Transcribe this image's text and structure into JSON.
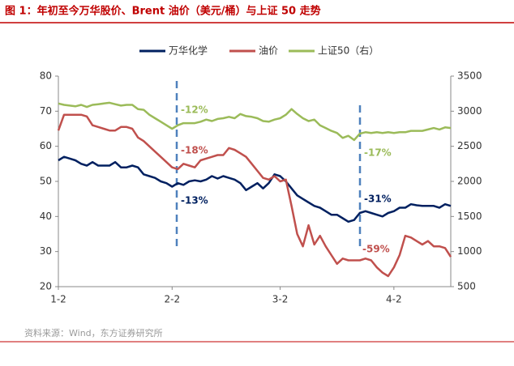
{
  "chart_data": {
    "type": "line",
    "title": "图 1：年初至今万华股价、Brent 油价（美元/桶）与上证 50 走势",
    "source": "资料来源：Wind，东方证券研究所",
    "categories": [
      "1-2",
      null,
      null,
      null,
      null,
      null,
      null,
      null,
      null,
      null,
      null,
      null,
      null,
      null,
      null,
      null,
      null,
      null,
      null,
      null,
      "2-2",
      null,
      null,
      null,
      null,
      null,
      null,
      null,
      null,
      null,
      null,
      null,
      null,
      null,
      null,
      null,
      null,
      null,
      null,
      "3-2",
      null,
      null,
      null,
      null,
      null,
      null,
      null,
      null,
      null,
      null,
      null,
      null,
      null,
      null,
      null,
      null,
      null,
      null,
      null,
      "4-2",
      null,
      null,
      null,
      null,
      null,
      null,
      null,
      null,
      null,
      null
    ],
    "series": [
      {
        "name": "万华化学",
        "color": "#002060",
        "values": [
          56,
          57,
          56.5,
          56,
          55,
          54.5,
          55.5,
          54.5,
          54.5,
          54.5,
          55.5,
          54,
          54,
          54.5,
          54,
          52,
          51.5,
          51,
          50,
          49.5,
          48.5,
          49.5,
          49,
          50,
          50.3,
          50,
          50.5,
          51.5,
          50.8,
          51.5,
          51,
          50.5,
          49.5,
          47.5,
          48.5,
          49.5,
          48,
          49.5,
          52,
          51.5,
          50,
          48,
          46,
          45,
          44,
          43,
          42.5,
          41.5,
          40.5,
          40.5,
          39.5,
          38.5,
          39,
          41,
          41.5,
          41,
          40.5,
          40,
          41,
          41.5,
          42.5,
          42.5,
          43.5,
          43.2,
          43,
          43,
          43,
          42.5,
          43.5,
          43
        ]
      },
      {
        "name": "油价",
        "color": "#c0504d",
        "values": [
          64.5,
          69,
          69,
          69,
          69,
          68.5,
          66,
          65.5,
          65,
          64.5,
          64.5,
          65.5,
          65.5,
          65,
          62.5,
          61.5,
          60,
          58.5,
          57,
          55.5,
          54,
          53.5,
          55,
          54.5,
          54,
          56,
          56.5,
          57,
          57.5,
          57.5,
          59.5,
          59,
          58,
          57,
          55,
          53,
          51,
          50.5,
          51.5,
          50,
          50.5,
          43,
          35,
          31.5,
          37.5,
          32,
          34.5,
          31.5,
          29,
          26.5,
          28,
          27.5,
          27.5,
          27.5,
          28,
          27.5,
          25.5,
          24,
          23,
          25.5,
          29,
          34.5,
          34,
          33,
          32,
          33,
          31.5,
          31.5,
          31,
          28.5
        ]
      },
      {
        "name": "上证50（右）",
        "color": "#9bbb59",
        "axis": "y2",
        "values": [
          3110,
          3090,
          3080,
          3070,
          3090,
          3060,
          3090,
          3100,
          3110,
          3120,
          3100,
          3080,
          3090,
          3090,
          3030,
          3020,
          2950,
          2900,
          2850,
          2800,
          2750,
          2800,
          2830,
          2830,
          2830,
          2850,
          2880,
          2860,
          2890,
          2900,
          2920,
          2900,
          2960,
          2930,
          2920,
          2900,
          2860,
          2850,
          2880,
          2900,
          2950,
          3030,
          2960,
          2900,
          2860,
          2880,
          2800,
          2760,
          2720,
          2690,
          2620,
          2650,
          2590,
          2680,
          2700,
          2690,
          2700,
          2690,
          2700,
          2690,
          2700,
          2700,
          2720,
          2720,
          2720,
          2740,
          2760,
          2740,
          2770,
          2760
        ]
      }
    ],
    "ylim": [
      20,
      80
    ],
    "yticks": [
      20,
      30,
      40,
      50,
      60,
      70,
      80
    ],
    "y2lim": [
      500,
      3500
    ],
    "y2ticks": [
      500,
      1000,
      1500,
      2000,
      2500,
      3000,
      3500
    ],
    "annotations": [
      "-12%",
      "-18%",
      "-13%",
      "-31%",
      "-59%",
      "-17%"
    ]
  }
}
